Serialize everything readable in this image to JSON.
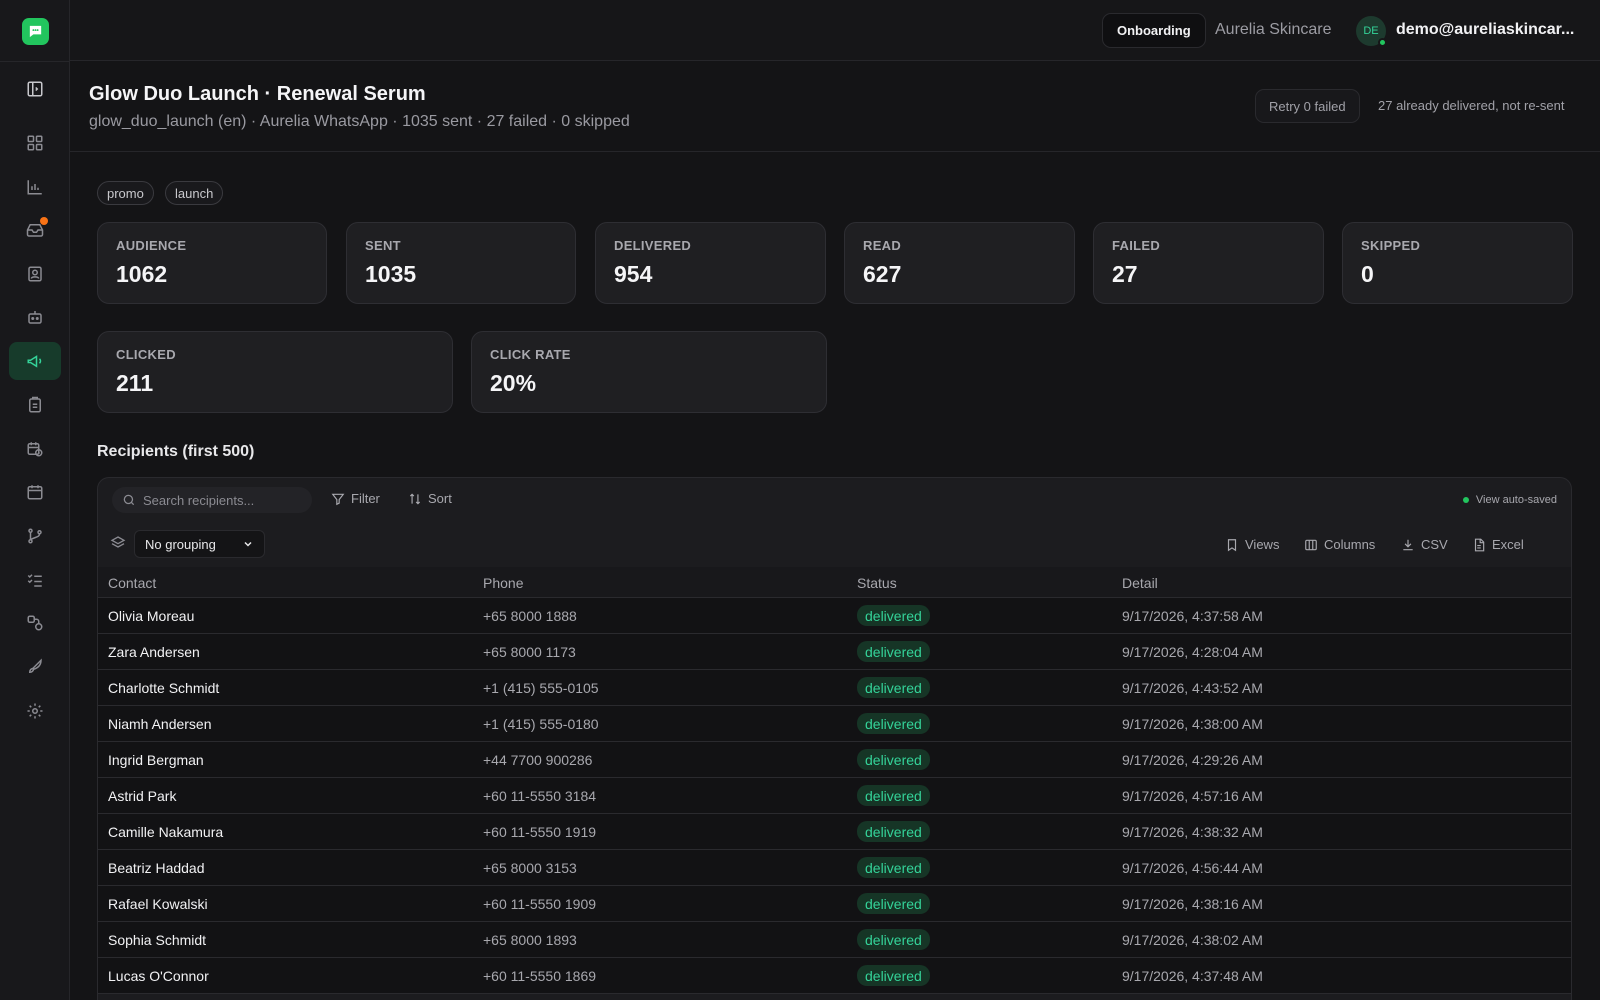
{
  "topbar": {
    "onboarding_label": "Onboarding",
    "org_name": "Aurelia Skincare",
    "avatar_initials": "DE",
    "user_email": "demo@aureliaskincar..."
  },
  "header": {
    "title": "Glow Duo Launch · Renewal Serum",
    "subtitle": "glow_duo_launch (en) · Aurelia WhatsApp · 1035 sent · 27 failed · 0 skipped",
    "retry_label": "Retry 0 failed",
    "retry_note": "27 already delivered, not re-sent"
  },
  "tags": [
    "promo",
    "launch"
  ],
  "stats": [
    {
      "label": "AUDIENCE",
      "value": "1062"
    },
    {
      "label": "SENT",
      "value": "1035"
    },
    {
      "label": "DELIVERED",
      "value": "954"
    },
    {
      "label": "READ",
      "value": "627"
    },
    {
      "label": "FAILED",
      "value": "27"
    },
    {
      "label": "SKIPPED",
      "value": "0"
    },
    {
      "label": "CLICKED",
      "value": "211"
    },
    {
      "label": "CLICK RATE",
      "value": "20%"
    }
  ],
  "recipients": {
    "section_title": "Recipients (first 500)",
    "search_placeholder": "Search recipients...",
    "filter_label": "Filter",
    "sort_label": "Sort",
    "autosave_label": "View auto-saved",
    "grouping_value": "No grouping",
    "views_label": "Views",
    "columns_label": "Columns",
    "csv_label": "CSV",
    "excel_label": "Excel",
    "columns": [
      "Contact",
      "Phone",
      "Status",
      "Detail"
    ],
    "rows": [
      {
        "contact": "Olivia Moreau",
        "phone": "+65 8000 1888",
        "status": "delivered",
        "detail": "9/17/2026, 4:37:58 AM"
      },
      {
        "contact": "Zara Andersen",
        "phone": "+65 8000 1173",
        "status": "delivered",
        "detail": "9/17/2026, 4:28:04 AM"
      },
      {
        "contact": "Charlotte Schmidt",
        "phone": "+1 (415) 555-0105",
        "status": "delivered",
        "detail": "9/17/2026, 4:43:52 AM"
      },
      {
        "contact": "Niamh Andersen",
        "phone": "+1 (415) 555-0180",
        "status": "delivered",
        "detail": "9/17/2026, 4:38:00 AM"
      },
      {
        "contact": "Ingrid Bergman",
        "phone": "+44 7700 900286",
        "status": "delivered",
        "detail": "9/17/2026, 4:29:26 AM"
      },
      {
        "contact": "Astrid Park",
        "phone": "+60 11-5550 3184",
        "status": "delivered",
        "detail": "9/17/2026, 4:57:16 AM"
      },
      {
        "contact": "Camille Nakamura",
        "phone": "+60 11-5550 1919",
        "status": "delivered",
        "detail": "9/17/2026, 4:38:32 AM"
      },
      {
        "contact": "Beatriz Haddad",
        "phone": "+65 8000 3153",
        "status": "delivered",
        "detail": "9/17/2026, 4:56:44 AM"
      },
      {
        "contact": "Rafael Kowalski",
        "phone": "+60 11-5550 1909",
        "status": "delivered",
        "detail": "9/17/2026, 4:38:16 AM"
      },
      {
        "contact": "Sophia Schmidt",
        "phone": "+65 8000 1893",
        "status": "delivered",
        "detail": "9/17/2026, 4:38:02 AM"
      },
      {
        "contact": "Lucas O'Connor",
        "phone": "+60 11-5550 1869",
        "status": "delivered",
        "detail": "9/17/2026, 4:37:48 AM"
      }
    ]
  },
  "sidebar": {
    "icons": [
      "dashboard-icon",
      "chart-icon",
      "inbox-icon",
      "contacts-icon",
      "bot-icon",
      "megaphone-icon",
      "clipboard-icon",
      "calendar-clock-icon",
      "calendar-icon",
      "branch-icon",
      "checklist-icon",
      "integrations-icon",
      "rocket-icon",
      "settings-icon"
    ],
    "active": "megaphone-icon",
    "badge_on": "inbox-icon"
  },
  "colors": {
    "accent": "#22c55e",
    "status_delivered_bg": "#163526",
    "status_delivered_text": "#34d399",
    "badge": "#f97316"
  }
}
